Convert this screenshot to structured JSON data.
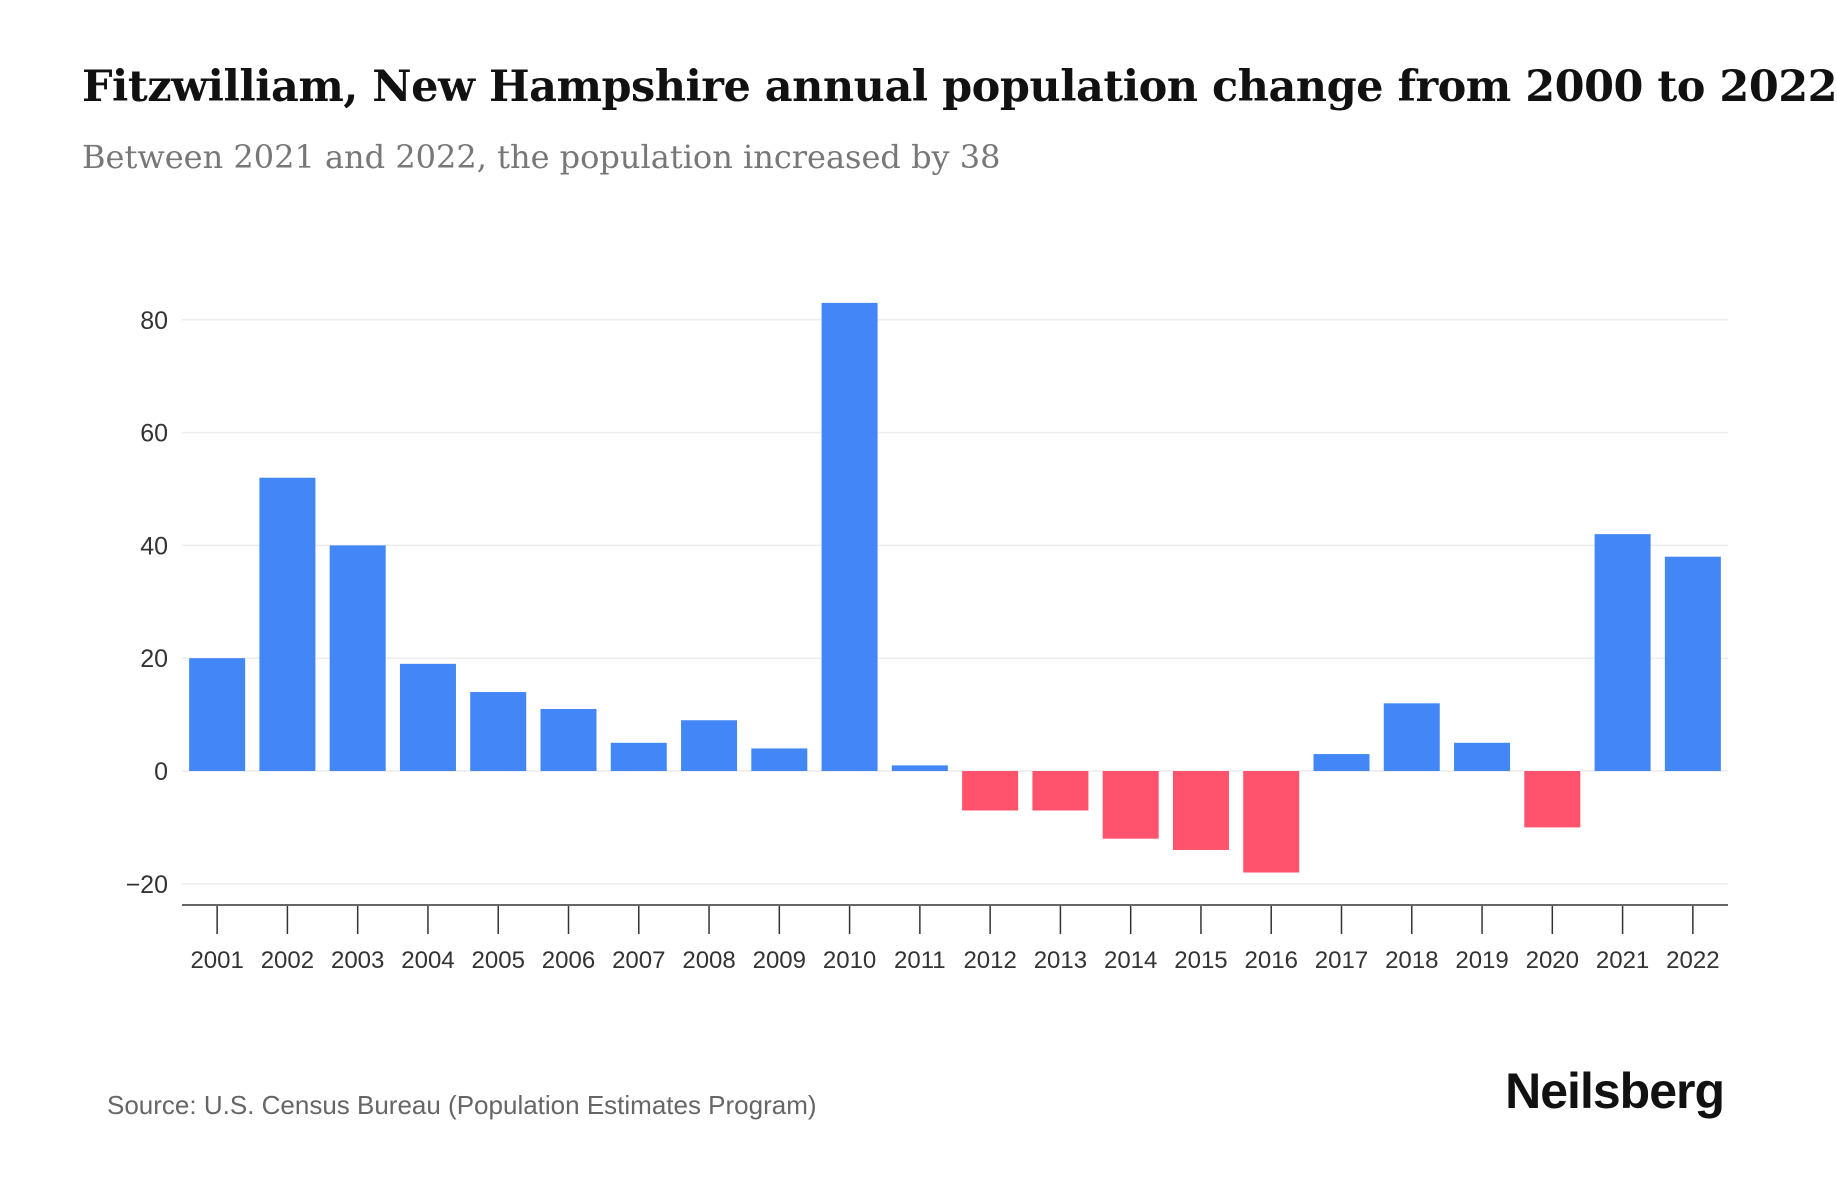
{
  "chart_data": {
    "type": "bar",
    "title": "Fitzwilliam, New Hampshire annual population change from 2000 to 2022",
    "subtitle": "Between 2021 and 2022, the population increased by 38",
    "categories": [
      "2001",
      "2002",
      "2003",
      "2004",
      "2005",
      "2006",
      "2007",
      "2008",
      "2009",
      "2010",
      "2011",
      "2012",
      "2013",
      "2014",
      "2015",
      "2016",
      "2017",
      "2018",
      "2019",
      "2020",
      "2021",
      "2022"
    ],
    "values": [
      20,
      52,
      40,
      19,
      14,
      11,
      5,
      9,
      4,
      83,
      1,
      -7,
      -7,
      -12,
      -14,
      -18,
      3,
      12,
      5,
      -10,
      42,
      38
    ],
    "xlabel": "",
    "ylabel": "",
    "ylim": [
      -24,
      88
    ],
    "yticks": [
      -20,
      0,
      20,
      40,
      60,
      80
    ],
    "ytick_labels": [
      "−20",
      "0",
      "20",
      "40",
      "60",
      "80"
    ],
    "grid": true,
    "colors": {
      "positive": "#4287f5",
      "negative": "#ff526d"
    }
  },
  "footer": {
    "source": "Source: U.S. Census Bureau (Population Estimates Program)",
    "logo": "Neilsberg"
  }
}
